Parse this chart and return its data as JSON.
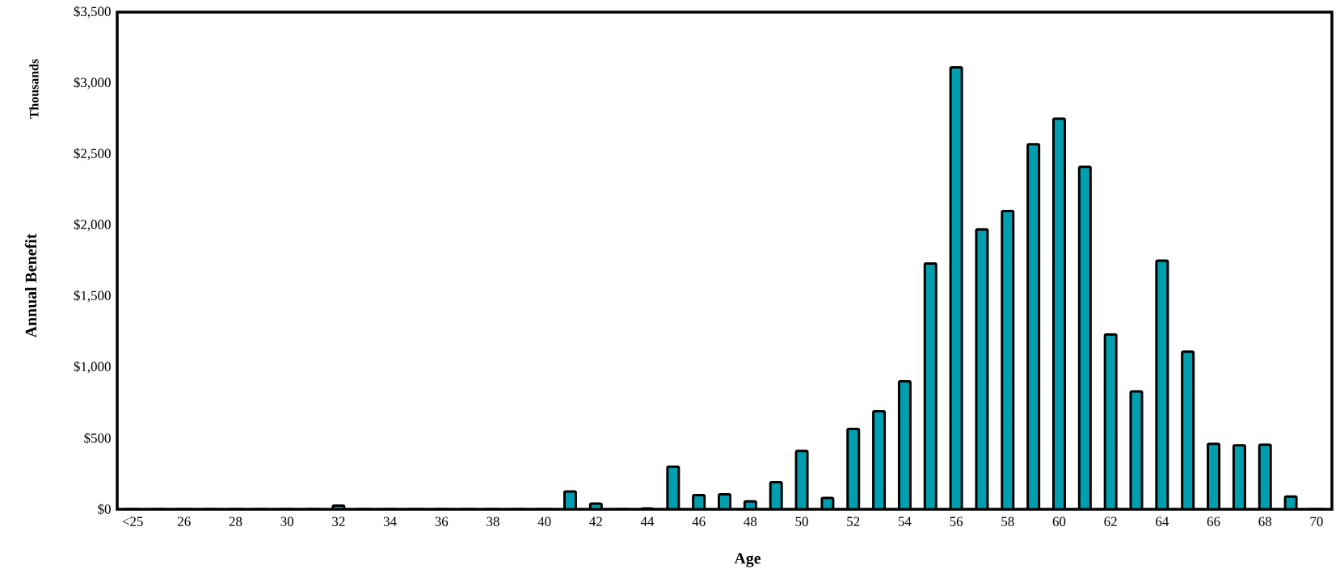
{
  "chart_data": {
    "type": "bar",
    "xlabel": "Age",
    "ylabel": "Annual Benefit",
    "annotations": [
      "Thousands"
    ],
    "categories": [
      "<25",
      null,
      "26",
      null,
      "28",
      null,
      "30",
      null,
      "32",
      null,
      "34",
      null,
      "36",
      null,
      "38",
      null,
      "40",
      null,
      "42",
      null,
      "44",
      null,
      "46",
      null,
      "48",
      null,
      "50",
      null,
      "52",
      null,
      "54",
      null,
      "56",
      null,
      "58",
      null,
      "60",
      null,
      "62",
      null,
      "64",
      null,
      "66",
      null,
      "68",
      null,
      "70"
    ],
    "values": [
      0,
      0,
      0,
      0,
      0,
      0,
      0,
      0,
      25,
      0,
      0,
      0,
      0,
      0,
      0,
      0,
      0,
      125,
      40,
      0,
      5,
      300,
      100,
      105,
      55,
      190,
      410,
      80,
      565,
      690,
      900,
      1730,
      3110,
      1970,
      2100,
      2570,
      2750,
      2410,
      1230,
      830,
      1750,
      1110,
      460,
      450,
      455,
      90,
      0
    ],
    "color": "#009fb0",
    "ylim": [
      0,
      3500
    ],
    "yticks": [
      {
        "value": 0,
        "label": "$0"
      },
      {
        "value": 500,
        "label": "$500"
      },
      {
        "value": 1000,
        "label": "$1,000"
      },
      {
        "value": 1500,
        "label": "$1,500"
      },
      {
        "value": 2000,
        "label": "$2,000"
      },
      {
        "value": 2500,
        "label": "$2,500"
      },
      {
        "value": 3000,
        "label": "$3,000"
      },
      {
        "value": 3500,
        "label": "$3,500"
      }
    ]
  }
}
